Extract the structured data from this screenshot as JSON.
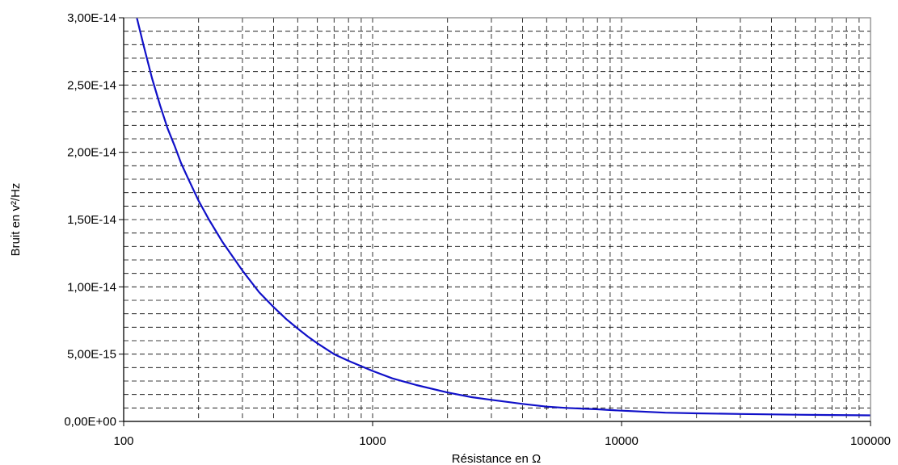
{
  "chart_data": {
    "type": "line",
    "title": "",
    "xlabel": "Résistance en Ω",
    "ylabel": "Bruit en v²/Hz",
    "x_scale": "log",
    "xlim": [
      100,
      100000
    ],
    "ylim": [
      0,
      3e-14
    ],
    "x_ticks": [
      100,
      1000,
      10000,
      100000
    ],
    "x_tick_labels": [
      "100",
      "1000",
      "10000",
      "100000"
    ],
    "y_ticks": [
      0,
      5e-15,
      1e-14,
      1.5e-14,
      2e-14,
      2.5e-14,
      3e-14
    ],
    "y_tick_labels": [
      "0,00E+00",
      "5,00E-15",
      "1,00E-14",
      "1,50E-14",
      "2,00E-14",
      "2,50E-14",
      "3,00E-14"
    ],
    "grid": true,
    "grid_style": "dashed",
    "y_minor_step": 1e-15,
    "line_color": "#1010c8",
    "series": [
      {
        "x": [
          113,
          120,
          130,
          140,
          150,
          160,
          170,
          180,
          200,
          220,
          250,
          300,
          350,
          400,
          450,
          500,
          550,
          600,
          700,
          800,
          1000,
          1200,
          1500,
          2000,
          2500,
          3000,
          4000,
          5000,
          6000,
          8000,
          10000,
          15000,
          20000,
          30000,
          50000,
          100000
        ],
        "y": [
          3e-14,
          2.8e-14,
          2.55e-14,
          2.35e-14,
          2.18e-14,
          2.05e-14,
          1.92e-14,
          1.82e-14,
          1.64e-14,
          1.5e-14,
          1.33e-14,
          1.12e-14,
          9.6e-15,
          8.5e-15,
          7.6e-15,
          6.9e-15,
          6.3e-15,
          5.8e-15,
          5e-15,
          4.5e-15,
          3.75e-15,
          3.2e-15,
          2.7e-15,
          2.15e-15,
          1.8e-15,
          1.6e-15,
          1.3e-15,
          1.1e-15,
          1e-15,
          9e-16,
          8e-16,
          6.5e-16,
          6e-16,
          5.5e-16,
          5e-16,
          4.5e-16
        ]
      }
    ]
  }
}
